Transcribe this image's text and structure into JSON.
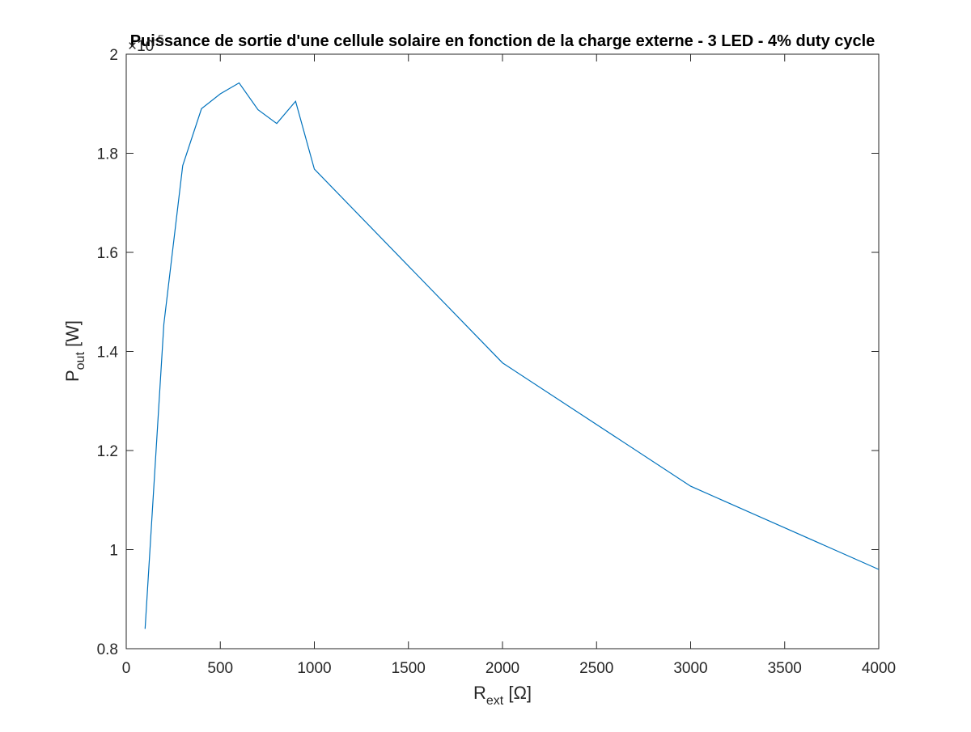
{
  "chart_data": {
    "type": "line",
    "title": "Puissance de sortie d'une cellule solaire en fonction de la charge externe - 3 LED - 4% duty cycle",
    "xlabel": {
      "main": "R",
      "sub": "ext",
      "unit": " [Ω]"
    },
    "ylabel": {
      "main": "P",
      "sub": "out",
      "unit": " [W]"
    },
    "y_exponent": {
      "base": "×10",
      "power": "-5"
    },
    "xlim": [
      0,
      4000
    ],
    "ylim": [
      0.8,
      2.0
    ],
    "xticks": [
      0,
      500,
      1000,
      1500,
      2000,
      2500,
      3000,
      3500,
      4000
    ],
    "xtick_labels": [
      "0",
      "500",
      "1000",
      "1500",
      "2000",
      "2500",
      "3000",
      "3500",
      "4000"
    ],
    "yticks": [
      0.8,
      1.0,
      1.2,
      1.4,
      1.6,
      1.8,
      2.0
    ],
    "ytick_labels": [
      "0.8",
      "1",
      "1.2",
      "1.4",
      "1.6",
      "1.8",
      "2"
    ],
    "grid": false,
    "series": [
      {
        "color": "#0072bd",
        "x": [
          100,
          200,
          300,
          400,
          500,
          600,
          700,
          800,
          900,
          1000,
          2000,
          3000,
          4000
        ],
        "y": [
          0.84,
          1.455,
          1.775,
          1.89,
          1.92,
          1.942,
          1.888,
          1.86,
          1.905,
          1.768,
          1.377,
          1.128,
          0.96
        ]
      }
    ]
  }
}
